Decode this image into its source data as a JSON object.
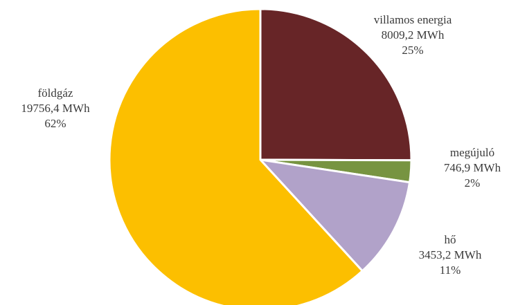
{
  "chart_data": {
    "type": "pie",
    "title": "",
    "legend": "none",
    "start_angle_deg": 0,
    "direction": "clockwise",
    "slices": [
      {
        "name": "villamos energia",
        "value": 8009.2,
        "value_label": "8009,2 MWh",
        "percent_label": "25%",
        "color": "#672527"
      },
      {
        "name": "megújuló",
        "value": 746.9,
        "value_label": "746,9 MWh",
        "percent_label": "2%",
        "color": "#779441"
      },
      {
        "name": "hő",
        "value": 3453.2,
        "value_label": "3453,2 MWh",
        "percent_label": "11%",
        "color": "#b1a2c9"
      },
      {
        "name": "földgáz",
        "value": 19756.4,
        "value_label": "19756,4 MWh",
        "percent_label": "62%",
        "color": "#fcbf00"
      }
    ]
  }
}
